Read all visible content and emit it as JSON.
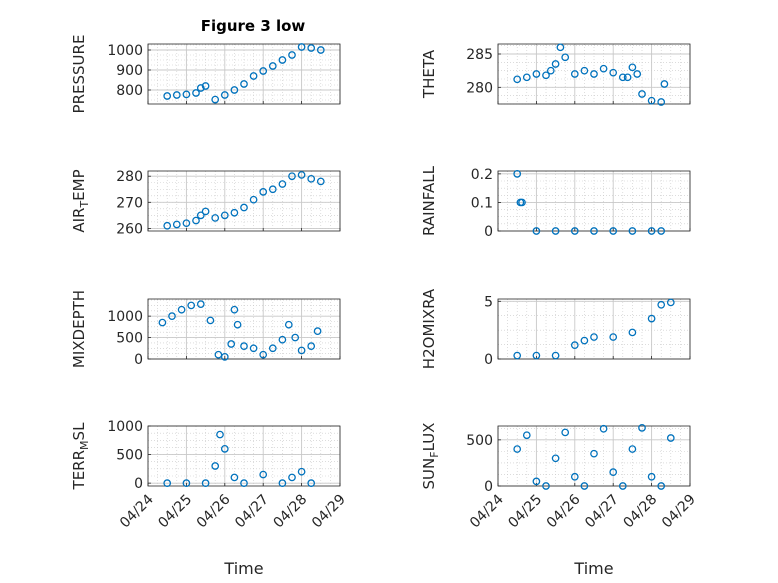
{
  "figure": {
    "title": "Figure 3 low",
    "marker_color": "#0072BD",
    "grid_color": "#c8c8c8",
    "axis_color": "#262626"
  },
  "chart_data": [
    {
      "type": "scatter",
      "panel": "pressure",
      "ylabel": "PRESSURE",
      "xlabel": "",
      "x_tick_labels": [],
      "xlim": [
        "04/24",
        "04/29"
      ],
      "ylim": [
        730,
        1030
      ],
      "yticks": [
        800,
        900,
        1000
      ],
      "x": [
        "04/24 12:00",
        "04/24 18:00",
        "04/25 00:00",
        "04/25 06:00",
        "04/25 09:00",
        "04/25 12:00",
        "04/25 18:00",
        "04/26 00:00",
        "04/26 06:00",
        "04/26 12:00",
        "04/26 18:00",
        "04/27 00:00",
        "04/27 06:00",
        "04/27 12:00",
        "04/27 18:00",
        "04/28 00:00",
        "04/28 06:00",
        "04/28 12:00"
      ],
      "y": [
        770,
        775,
        778,
        785,
        810,
        820,
        752,
        775,
        800,
        830,
        870,
        895,
        920,
        950,
        975,
        1015,
        1010,
        1000
      ]
    },
    {
      "type": "scatter",
      "panel": "theta",
      "ylabel": "THETA",
      "xlabel": "",
      "x_tick_labels": [],
      "xlim": [
        "04/24",
        "04/29"
      ],
      "ylim": [
        277.5,
        286.5
      ],
      "yticks": [
        280,
        285
      ],
      "x": [
        "04/24 12:00",
        "04/24 18:00",
        "04/25 00:00",
        "04/25 06:00",
        "04/25 09:00",
        "04/25 12:00",
        "04/25 15:00",
        "04/25 18:00",
        "04/26 00:00",
        "04/26 06:00",
        "04/26 12:00",
        "04/26 18:00",
        "04/27 00:00",
        "04/27 06:00",
        "04/27 09:00",
        "04/27 12:00",
        "04/27 15:00",
        "04/27 18:00",
        "04/28 00:00",
        "04/28 06:00",
        "04/28 08:00"
      ],
      "y": [
        281.2,
        281.5,
        282.0,
        281.8,
        282.5,
        283.5,
        286.0,
        284.5,
        282.0,
        282.5,
        282.0,
        282.8,
        282.2,
        281.5,
        281.5,
        283.0,
        282.0,
        279.0,
        278.0,
        277.8,
        280.5
      ]
    },
    {
      "type": "scatter",
      "panel": "air_temp",
      "ylabel": "AIR_TEMP",
      "xlabel": "",
      "x_tick_labels": [],
      "xlim": [
        "04/24",
        "04/29"
      ],
      "ylim": [
        259,
        282
      ],
      "yticks": [
        260,
        270,
        280
      ],
      "x": [
        "04/24 12:00",
        "04/24 18:00",
        "04/25 00:00",
        "04/25 06:00",
        "04/25 09:00",
        "04/25 12:00",
        "04/25 18:00",
        "04/26 00:00",
        "04/26 06:00",
        "04/26 12:00",
        "04/26 18:00",
        "04/27 00:00",
        "04/27 06:00",
        "04/27 12:00",
        "04/27 18:00",
        "04/28 00:00",
        "04/28 06:00",
        "04/28 12:00"
      ],
      "y": [
        261,
        261.5,
        262,
        263,
        265,
        266.5,
        264,
        265,
        266,
        268,
        271,
        274,
        275,
        277,
        280,
        280.5,
        279,
        278
      ]
    },
    {
      "type": "scatter",
      "panel": "rainfall",
      "ylabel": "RAINFALL",
      "xlabel": "",
      "x_tick_labels": [],
      "xlim": [
        "04/24",
        "04/29"
      ],
      "ylim": [
        0,
        0.21
      ],
      "yticks": [
        0,
        0.1,
        0.2
      ],
      "x": [
        "04/24 12:00",
        "04/24 14:00",
        "04/24 15:00",
        "04/25 00:00",
        "04/25 12:00",
        "04/26 00:00",
        "04/26 12:00",
        "04/27 00:00",
        "04/27 12:00",
        "04/28 00:00",
        "04/28 06:00"
      ],
      "y": [
        0.2,
        0.1,
        0.1,
        0,
        0,
        0,
        0,
        0,
        0,
        0,
        0
      ]
    },
    {
      "type": "scatter",
      "panel": "mixdepth",
      "ylabel": "MIXDEPTH",
      "xlabel": "",
      "x_tick_labels": [],
      "xlim": [
        "04/24",
        "04/29"
      ],
      "ylim": [
        0,
        1400
      ],
      "yticks": [
        0,
        500,
        1000
      ],
      "x": [
        "04/24 09:00",
        "04/24 15:00",
        "04/24 21:00",
        "04/25 03:00",
        "04/25 09:00",
        "04/25 15:00",
        "04/25 20:00",
        "04/26 00:00",
        "04/26 04:00",
        "04/26 06:00",
        "04/26 08:00",
        "04/26 12:00",
        "04/26 18:00",
        "04/27 00:00",
        "04/27 06:00",
        "04/27 12:00",
        "04/27 16:00",
        "04/27 20:00",
        "04/28 00:00",
        "04/28 06:00",
        "04/28 10:00"
      ],
      "y": [
        850,
        1000,
        1150,
        1250,
        1280,
        900,
        100,
        50,
        350,
        1150,
        800,
        300,
        250,
        100,
        250,
        450,
        800,
        500,
        200,
        300,
        650
      ]
    },
    {
      "type": "scatter",
      "panel": "h2omixra",
      "ylabel": "H2OMIXRA",
      "xlabel": "",
      "x_tick_labels": [],
      "xlim": [
        "04/24",
        "04/29"
      ],
      "ylim": [
        0,
        5.2
      ],
      "yticks": [
        0,
        5
      ],
      "x": [
        "04/24 12:00",
        "04/25 00:00",
        "04/25 12:00",
        "04/26 00:00",
        "04/26 06:00",
        "04/26 12:00",
        "04/27 00:00",
        "04/27 12:00",
        "04/28 00:00",
        "04/28 06:00",
        "04/28 12:00"
      ],
      "y": [
        0.3,
        0.3,
        0.3,
        1.2,
        1.6,
        1.9,
        1.9,
        2.3,
        3.5,
        4.7,
        4.9
      ]
    },
    {
      "type": "scatter",
      "panel": "terr_msl",
      "ylabel": "TERR_MSL",
      "xlabel": "Time",
      "x_tick_labels": [
        "04/24",
        "04/25",
        "04/26",
        "04/27",
        "04/28",
        "04/29"
      ],
      "xlim": [
        "04/24",
        "04/29"
      ],
      "ylim": [
        -50,
        1000
      ],
      "yticks": [
        0,
        500,
        1000
      ],
      "x": [
        "04/24 12:00",
        "04/25 00:00",
        "04/25 12:00",
        "04/25 18:00",
        "04/25 21:00",
        "04/26 00:00",
        "04/26 06:00",
        "04/26 12:00",
        "04/27 00:00",
        "04/27 12:00",
        "04/27 18:00",
        "04/28 00:00",
        "04/28 06:00"
      ],
      "y": [
        0,
        0,
        0,
        300,
        850,
        600,
        100,
        0,
        150,
        0,
        100,
        200,
        0
      ]
    },
    {
      "type": "scatter",
      "panel": "sun_flux",
      "ylabel": "SUN_FLUX",
      "xlabel": "Time",
      "x_tick_labels": [
        "04/24",
        "04/25",
        "04/26",
        "04/27",
        "04/28",
        "04/29"
      ],
      "xlim": [
        "04/24",
        "04/29"
      ],
      "ylim": [
        0,
        650
      ],
      "yticks": [
        0,
        500
      ],
      "x": [
        "04/24 12:00",
        "04/24 18:00",
        "04/25 00:00",
        "04/25 06:00",
        "04/25 12:00",
        "04/25 18:00",
        "04/26 00:00",
        "04/26 06:00",
        "04/26 12:00",
        "04/26 18:00",
        "04/27 00:00",
        "04/27 06:00",
        "04/27 12:00",
        "04/27 18:00",
        "04/28 00:00",
        "04/28 06:00",
        "04/28 12:00"
      ],
      "y": [
        400,
        550,
        50,
        0,
        300,
        580,
        100,
        0,
        350,
        620,
        150,
        0,
        400,
        630,
        100,
        0,
        520
      ]
    }
  ]
}
